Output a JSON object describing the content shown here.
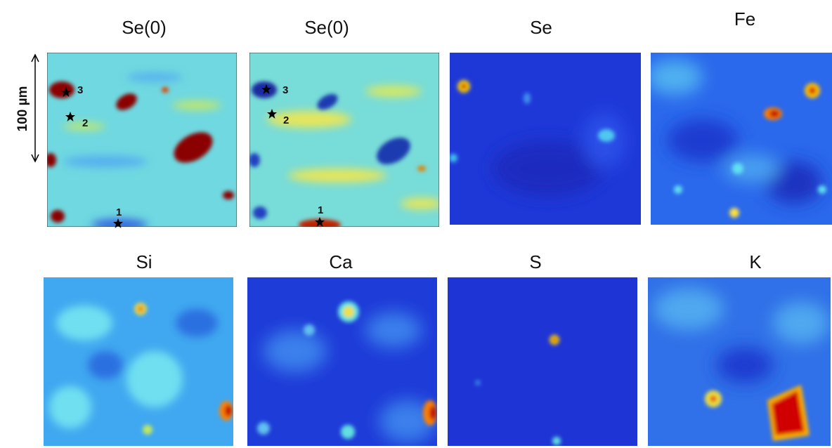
{
  "scale_bar": "100 µm",
  "panels": [
    {
      "title": "Se(0)",
      "markers": [
        "3",
        "2",
        "1"
      ]
    },
    {
      "title": "Se(0)",
      "markers": [
        "3",
        "2",
        "1"
      ]
    },
    {
      "title": "Se"
    },
    {
      "title": "Fe"
    },
    {
      "title": "Si"
    },
    {
      "title": "Ca"
    },
    {
      "title": "S"
    },
    {
      "title": "K"
    }
  ]
}
